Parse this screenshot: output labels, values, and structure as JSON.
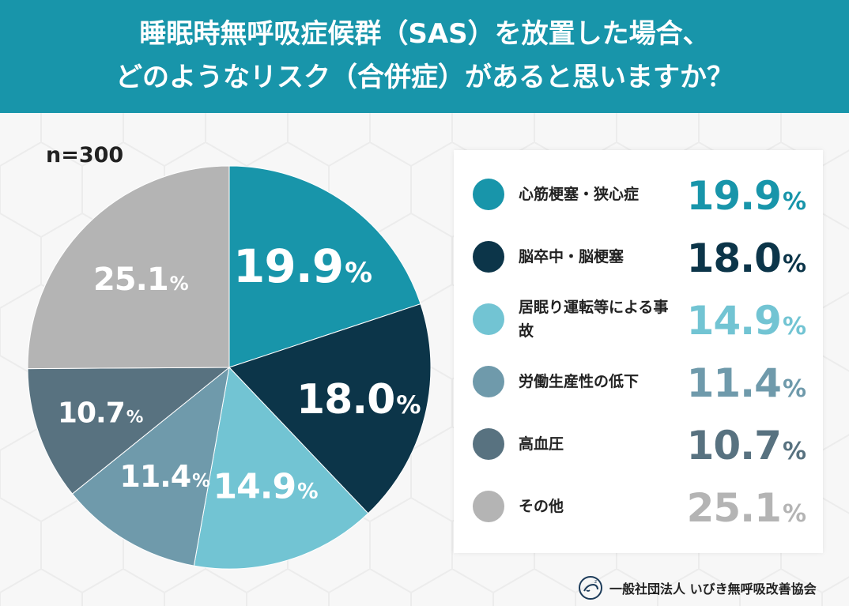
{
  "header": {
    "line1": "睡眠時無呼吸症候群（SAS）を放置した場合、",
    "line2": "どのようなリスク（合併症）があると思いますか？"
  },
  "sample_size": "n=300",
  "percent_sign": "%",
  "chart_data": {
    "type": "pie",
    "unit": "%",
    "categories": [
      "心筋梗塞・狭心症",
      "脳卒中・脳梗塞",
      "居眠り運転等による事故",
      "労働生産性の低下",
      "高血圧",
      "その他"
    ],
    "values": [
      19.9,
      18.0,
      14.9,
      11.4,
      10.7,
      25.1
    ],
    "value_labels": [
      "19.9",
      "18.0",
      "14.9",
      "11.4",
      "10.7",
      "25.1"
    ],
    "colors": [
      "#1895aa",
      "#0c3549",
      "#72c4d3",
      "#6f9aab",
      "#587280",
      "#b4b4b4"
    ],
    "start_angle_deg": 0,
    "direction": "clockwise",
    "legend_position": "right"
  },
  "legend": {
    "items": [
      {
        "label": "心筋梗塞・狭心症",
        "value": "19.9",
        "color": "#1895aa"
      },
      {
        "label": "脳卒中・脳梗塞",
        "value": "18.0",
        "color": "#0c3549"
      },
      {
        "label": "居眠り運転等による事故",
        "value": "14.9",
        "color": "#72c4d3"
      },
      {
        "label": "労働生産性の低下",
        "value": "11.4",
        "color": "#6f9aab"
      },
      {
        "label": "高血圧",
        "value": "10.7",
        "color": "#587280"
      },
      {
        "label": "その他",
        "value": "25.1",
        "color": "#b4b4b4"
      }
    ]
  },
  "footer": {
    "org_name": "一般社団法人 いびき無呼吸改善協会",
    "logo_icon": "sleeping-face-logo-icon"
  }
}
